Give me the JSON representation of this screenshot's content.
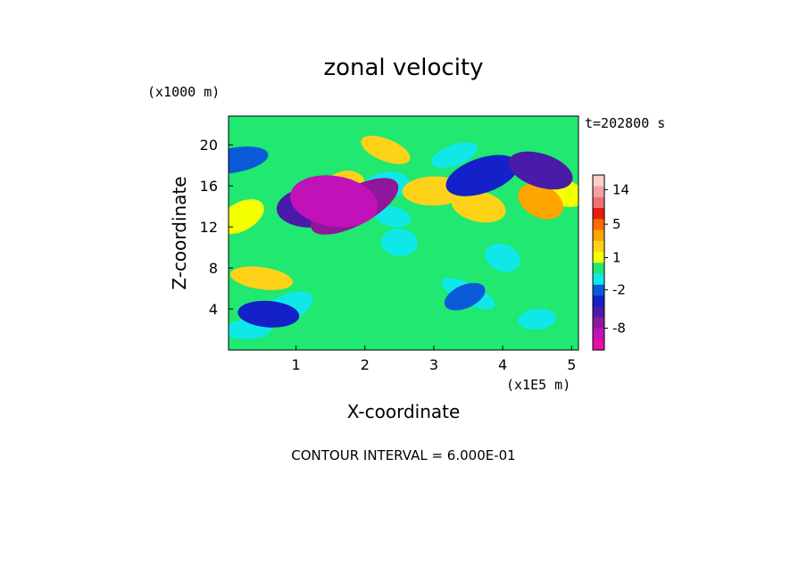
{
  "chart_data": {
    "type": "heatmap",
    "title": "zonal velocity",
    "xlabel": "X-coordinate",
    "ylabel": "Z-coordinate",
    "x_unit": "(x1E5 m)",
    "y_unit": "(x1000 m)",
    "time_label": "t=202800 s",
    "footer": "CONTOUR INTERVAL = 6.000E-01",
    "x_ticks": [
      "1",
      "2",
      "3",
      "4",
      "5"
    ],
    "x_tick_values": [
      1,
      2,
      3,
      4,
      5
    ],
    "y_ticks": [
      "4",
      "8",
      "12",
      "16",
      "20"
    ],
    "y_tick_values": [
      4,
      8,
      12,
      16,
      20
    ],
    "xlim": [
      0.02,
      5.1
    ],
    "ylim": [
      0,
      22.8
    ],
    "colorbar": {
      "tick_labels": [
        "14",
        "5",
        "1",
        "-2",
        "-8"
      ],
      "tick_values": [
        14,
        5,
        1,
        -2,
        -8
      ],
      "levels": [
        -12,
        -10,
        -8,
        -6,
        -4,
        -2.5,
        -1.5,
        -0.6,
        0.6,
        1.5,
        2.5,
        4,
        6,
        9,
        12,
        15,
        18
      ],
      "colors": [
        "#e80fa0",
        "#c012b8",
        "#90169a",
        "#4a1aa8",
        "#1420c8",
        "#0a5ad8",
        "#10e8e8",
        "#20e870",
        "#f4ff00",
        "#ffd21a",
        "#ffa500",
        "#ff6a00",
        "#e81a10",
        "#f07070",
        "#f5a0a0",
        "#fad0c8"
      ]
    },
    "features": [
      {
        "x": 1.0,
        "z": 6.5,
        "value": 0.0
      },
      {
        "x": 0.2,
        "z": 13.0,
        "value": 1.2
      },
      {
        "x": 0.5,
        "z": 7.0,
        "value": 1.5
      },
      {
        "x": 1.3,
        "z": 14.0,
        "value": -6.0
      },
      {
        "x": 1.55,
        "z": 14.5,
        "value": -9.0
      },
      {
        "x": 1.85,
        "z": 14.0,
        "value": -7.0
      },
      {
        "x": 1.7,
        "z": 16.0,
        "value": 1.5
      },
      {
        "x": 0.85,
        "z": 4.0,
        "value": -0.8
      },
      {
        "x": 0.6,
        "z": 3.5,
        "value": -3.0
      },
      {
        "x": 0.1,
        "z": 18.5,
        "value": -2.5
      },
      {
        "x": 2.3,
        "z": 19.5,
        "value": 1.5
      },
      {
        "x": 2.4,
        "z": 13.0,
        "value": -0.8
      },
      {
        "x": 2.3,
        "z": 16.0,
        "value": -0.8
      },
      {
        "x": 3.0,
        "z": 15.5,
        "value": 1.5
      },
      {
        "x": 3.3,
        "z": 19.0,
        "value": -0.9
      },
      {
        "x": 3.7,
        "z": 17.0,
        "value": -3.5
      },
      {
        "x": 3.65,
        "z": 14.0,
        "value": 2.0
      },
      {
        "x": 4.55,
        "z": 17.5,
        "value": -5.5
      },
      {
        "x": 4.55,
        "z": 14.5,
        "value": 2.5
      },
      {
        "x": 4.8,
        "z": 15.5,
        "value": 1.0
      },
      {
        "x": 3.5,
        "z": 5.5,
        "value": -0.8
      },
      {
        "x": 3.45,
        "z": 5.2,
        "value": -1.8
      },
      {
        "x": 2.5,
        "z": 10.5,
        "value": -0.8
      },
      {
        "x": 4.0,
        "z": 9.0,
        "value": -0.7
      },
      {
        "x": 4.5,
        "z": 3.0,
        "value": -1.0
      },
      {
        "x": 0.3,
        "z": 2.0,
        "value": -0.7
      },
      {
        "x": 4.9,
        "z": 6.0,
        "value": 0.2
      },
      {
        "x": 2.0,
        "z": 4.0,
        "value": 0.2
      }
    ]
  }
}
